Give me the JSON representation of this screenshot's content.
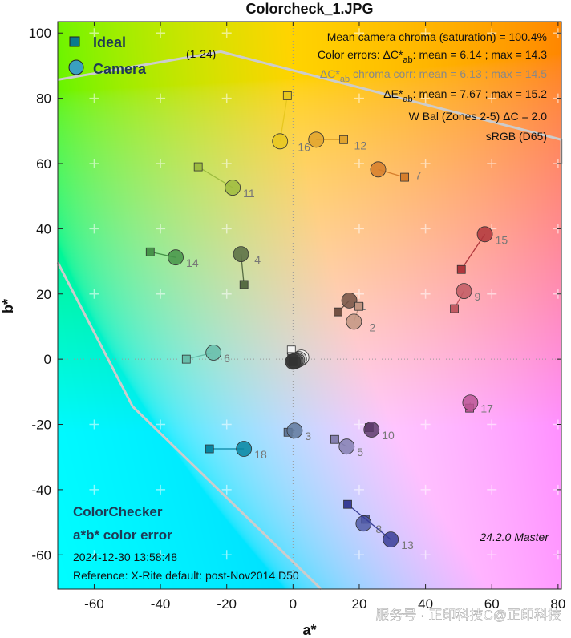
{
  "chart_data": {
    "type": "scatter",
    "title": "Colorcheck_1.JPG",
    "xlabel": "a*",
    "ylabel": "b*",
    "xlim": [
      -71,
      81
    ],
    "ylim": [
      -70.5,
      103.5
    ],
    "xticks": [
      -60,
      -40,
      -20,
      0,
      20,
      40,
      60,
      80
    ],
    "yticks": [
      -60,
      -40,
      -20,
      0,
      20,
      40,
      60,
      80,
      100
    ],
    "grid": "plus-markers",
    "legend": {
      "position": "top-left",
      "ideal": "Ideal",
      "camera": "Camera"
    },
    "gamut_label": "(1-24)",
    "gamut_upper": [
      [
        -71,
        85.7
      ],
      [
        -21.8,
        94.3
      ],
      [
        81,
        67.3
      ],
      [
        81,
        60
      ]
    ],
    "gamut_lower": [
      [
        -71,
        29.7
      ],
      [
        -48.4,
        -14.5
      ],
      [
        8.5,
        -70.5
      ]
    ],
    "patches": [
      {
        "id": "1",
        "ideal": [
          13.6,
          14.5
        ],
        "camera": [
          17.0,
          18.0
        ],
        "color": "#735244"
      },
      {
        "id": "2",
        "ideal": [
          19.9,
          16.2
        ],
        "camera": [
          18.4,
          11.5
        ],
        "color": "#c29682"
      },
      {
        "id": "3",
        "ideal": [
          -1.5,
          -22.4
        ],
        "camera": [
          0.5,
          -21.9
        ],
        "color": "#627a9d"
      },
      {
        "id": "4",
        "ideal": [
          -14.8,
          22.9
        ],
        "camera": [
          -15.7,
          32.2
        ],
        "color": "#576c43"
      },
      {
        "id": "5",
        "ideal": [
          12.6,
          -24.6
        ],
        "camera": [
          16.2,
          -26.8
        ],
        "color": "#8580b1"
      },
      {
        "id": "6",
        "ideal": [
          -32.2,
          0.0
        ],
        "camera": [
          -24.0,
          2.0
        ],
        "color": "#67bdaa"
      },
      {
        "id": "7",
        "ideal": [
          33.7,
          55.8
        ],
        "camera": [
          25.7,
          58.2
        ],
        "color": "#d67e2c"
      },
      {
        "id": "8",
        "ideal": [
          21.8,
          -49.1
        ],
        "camera": [
          21.3,
          -50.4
        ],
        "color": "#505ba6"
      },
      {
        "id": "9",
        "ideal": [
          48.7,
          15.5
        ],
        "camera": [
          51.6,
          20.9
        ],
        "color": "#c15a63"
      },
      {
        "id": "10",
        "ideal": [
          23.0,
          -21.0
        ],
        "camera": [
          23.7,
          -21.6
        ],
        "color": "#5e3c6c"
      },
      {
        "id": "11",
        "ideal": [
          -28.6,
          59.0
        ],
        "camera": [
          -18.2,
          52.6
        ],
        "color": "#9dbc40"
      },
      {
        "id": "12",
        "ideal": [
          15.3,
          67.3
        ],
        "camera": [
          7.0,
          67.3
        ],
        "color": "#e0a32e"
      },
      {
        "id": "13",
        "ideal": [
          16.5,
          -44.5
        ],
        "camera": [
          29.5,
          -55.3
        ],
        "color": "#383d96"
      },
      {
        "id": "14",
        "ideal": [
          -43.1,
          32.9
        ],
        "camera": [
          -35.4,
          31.2
        ],
        "color": "#469449"
      },
      {
        "id": "15",
        "ideal": [
          50.8,
          27.5
        ],
        "camera": [
          57.9,
          38.3
        ],
        "color": "#af363c"
      },
      {
        "id": "16",
        "ideal": [
          -1.7,
          80.8
        ],
        "camera": [
          -3.9,
          66.8
        ],
        "color": "#e7c71f"
      },
      {
        "id": "17",
        "ideal": [
          53.3,
          -15.0
        ],
        "camera": [
          53.5,
          -13.3
        ],
        "color": "#bb5695"
      },
      {
        "id": "18",
        "ideal": [
          -25.2,
          -27.5
        ],
        "camera": [
          -14.8,
          -27.5
        ],
        "color": "#0885a1"
      },
      {
        "id": "19",
        "ideal": [
          -0.5,
          2.8
        ],
        "camera": [
          2.5,
          0.5
        ],
        "color": "#f3f3f2"
      },
      {
        "id": "20",
        "ideal": [
          -0.4,
          0.8
        ],
        "camera": [
          1.8,
          0.0
        ],
        "color": "#c8c8c8"
      },
      {
        "id": "21",
        "ideal": [
          -0.3,
          0.2
        ],
        "camera": [
          1.2,
          -0.3
        ],
        "color": "#a0a0a0"
      },
      {
        "id": "22",
        "ideal": [
          -0.2,
          -0.3
        ],
        "camera": [
          0.8,
          -0.5
        ],
        "color": "#7a7a79"
      },
      {
        "id": "23",
        "ideal": [
          -0.1,
          -0.5
        ],
        "camera": [
          0.4,
          -0.6
        ],
        "color": "#555555"
      },
      {
        "id": "24",
        "ideal": [
          0.0,
          -0.8
        ],
        "camera": [
          0.0,
          -0.8
        ],
        "color": "#343434"
      }
    ],
    "annotations": {
      "chroma": "Mean camera chroma (saturation) = 100.4%",
      "dc_prefix": "Color errors:  ΔC*",
      "dc_sub": "ab",
      "dc_suffix": ":  mean = 6.14 ;  max = 14.3",
      "dcc_prefix": "ΔC*",
      "dcc_sub": "ab",
      "dcc_suffix": "  chroma corr:  mean = 6.13 ;  max = 14.5",
      "de_prefix": "ΔE*",
      "de_sub": "ab",
      "de_suffix": ":  mean = 7.67 ;  max = 15.2",
      "wbal": "W Bal (Zones 2-5) ΔC = 2.0",
      "colorspace": "sRGB (D65)",
      "chart_name": "ColorChecker",
      "chart_subtitle": "a*b* color error",
      "datetime": "2024-12-30 13:58:48",
      "reference": "Reference: X-Rite default:  post-Nov2014   D50",
      "version": "24.2.0  Master"
    }
  },
  "watermark": "服务号 · 正印科技C@正印科技",
  "colors": {
    "gamut_line": "#cccccc",
    "text_dark": "#1f3a55"
  }
}
